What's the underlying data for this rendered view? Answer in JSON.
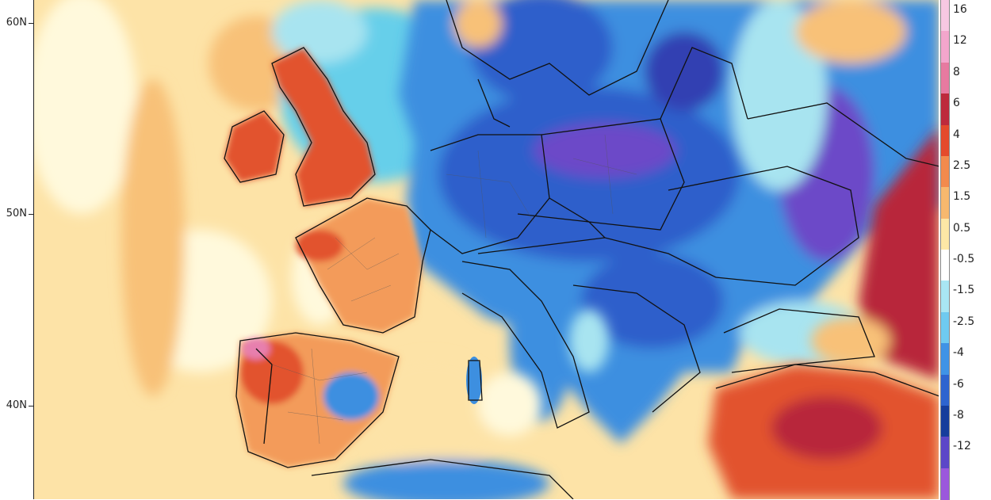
{
  "map": {
    "lat_labels": [
      "60N",
      "50N",
      "40N"
    ],
    "colors": {
      "ocean_neutral": "#fff9dc",
      "warm_light": "#fde3a7",
      "warm": "#f8c178",
      "warm_mid": "#f39b5a",
      "hot": "#e2532e",
      "hot_dark": "#b8283a",
      "hot_pink": "#e77fae",
      "cool_light": "#a8e4f0",
      "cool": "#66cfea",
      "cold": "#3d8fe0",
      "cold_mid": "#2d5fcb",
      "cold_dark": "#3340b2",
      "cold_purple": "#6c4ac8",
      "cold_violet": "#8a52dc",
      "border": "#111111"
    }
  },
  "legend": {
    "items": [
      {
        "label": "16",
        "color": "#f7c8e2"
      },
      {
        "label": "12",
        "color": "#f3a6cc"
      },
      {
        "label": "8",
        "color": "#e77aa0"
      },
      {
        "label": "6",
        "color": "#bd2a3c"
      },
      {
        "label": "4",
        "color": "#e44a2c"
      },
      {
        "label": "2.5",
        "color": "#f28a4d"
      },
      {
        "label": "1.5",
        "color": "#f7b86e"
      },
      {
        "label": "0.5",
        "color": "#fde7a6"
      },
      {
        "label": "-0.5",
        "color": "#ffffff"
      },
      {
        "label": "-1.5",
        "color": "#a9e6f3"
      },
      {
        "label": "-2.5",
        "color": "#6fcaf0"
      },
      {
        "label": "-4",
        "color": "#3f93e6"
      },
      {
        "label": "-6",
        "color": "#2e64cf"
      },
      {
        "label": "-8",
        "color": "#163d9c"
      },
      {
        "label": "-12",
        "color": "#5c47c8"
      },
      {
        "label": "",
        "color": "#9b57dc"
      }
    ]
  }
}
